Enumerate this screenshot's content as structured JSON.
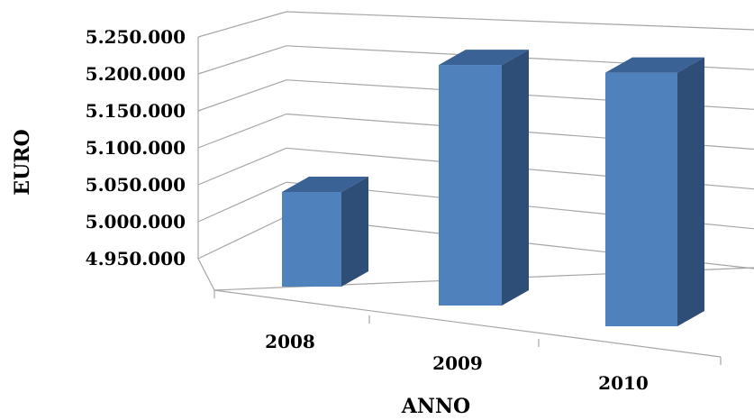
{
  "chart_data": {
    "type": "bar",
    "title": "",
    "xlabel": "ANNO",
    "ylabel": "EURO",
    "categories": [
      "2008",
      "2009",
      "2010"
    ],
    "values": [
      5068000,
      5230000,
      5225000
    ],
    "ylim": [
      4950000,
      5250000
    ],
    "yticks": [
      "4.950.000",
      "5.000.000",
      "5.050.000",
      "5.100.000",
      "5.150.000",
      "5.200.000",
      "5.250.000"
    ],
    "grid": true,
    "legend": "none",
    "style": "3d-column",
    "colors": {
      "bar_front": "#4F81BD",
      "bar_side": "#2E4D77",
      "bar_top": "#3A6294",
      "grid": "#A6A6A6"
    }
  }
}
